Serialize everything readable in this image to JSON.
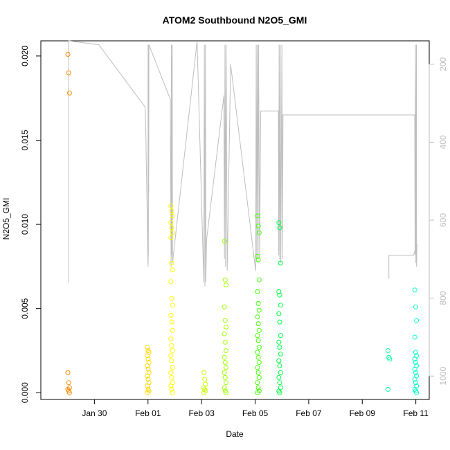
{
  "chart_data": {
    "type": "scatter",
    "title": "ATOM2 Southbound N2O5_GMI",
    "xlabel": "Date",
    "ylabel": "N2O5_GMI",
    "xlim": [
      "2017-01-28T00:00",
      "2017-02-11T12:00"
    ],
    "ylim": [
      -0.0004,
      0.0209
    ],
    "x_ticks": [
      {
        "date": "2017-01-30",
        "label": "Jan 30"
      },
      {
        "date": "2017-02-01",
        "label": "Feb 01"
      },
      {
        "date": "2017-02-03",
        "label": "Feb 03"
      },
      {
        "date": "2017-02-05",
        "label": "Feb 05"
      },
      {
        "date": "2017-02-07",
        "label": "Feb 07"
      },
      {
        "date": "2017-02-09",
        "label": "Feb 09"
      },
      {
        "date": "2017-02-11",
        "label": "Feb 11"
      }
    ],
    "y_ticks": [
      {
        "value": 0.0,
        "label": "0.000"
      },
      {
        "value": 0.005,
        "label": "0.005"
      },
      {
        "value": 0.01,
        "label": "0.010"
      },
      {
        "value": 0.015,
        "label": "0.015"
      },
      {
        "value": 0.02,
        "label": "0.020"
      }
    ],
    "y2_axis": {
      "ylim": [
        1060,
        140
      ],
      "reversed": true,
      "color": "#bebebe",
      "ticks": [
        {
          "value": 200,
          "label": "200"
        },
        {
          "value": 400,
          "label": "400"
        },
        {
          "value": 600,
          "label": "600"
        },
        {
          "value": 800,
          "label": "800"
        },
        {
          "value": 1000,
          "label": "1000"
        }
      ]
    },
    "marker": "open-circle",
    "point_groups": [
      {
        "date": "2017-01-29T00:55",
        "color": "#ff8c00",
        "values": [
          0.0201,
          0.019,
          0.0178,
          0.0012,
          0.0006,
          0.0003,
          0.0002,
          0.0001,
          0.0
        ]
      },
      {
        "date": "2017-02-01T00:10",
        "color": "#ffd700",
        "values": [
          0.0027,
          0.0025,
          0.0024,
          0.0022,
          0.002,
          0.0018,
          0.0016,
          0.0014,
          0.0012,
          0.001,
          0.0008,
          0.0006,
          0.0004,
          0.0002,
          0.0001,
          0.0
        ]
      },
      {
        "date": "2017-02-01T21:15",
        "color": "#ffff00",
        "values": [
          0.0111,
          0.0108,
          0.0105,
          0.0101,
          0.0098,
          0.0095,
          0.0092,
          0.0077,
          0.0073,
          0.0066,
          0.0056,
          0.0052,
          0.0046,
          0.0042,
          0.0037,
          0.0032,
          0.0028,
          0.0025,
          0.0022,
          0.0019,
          0.0015,
          0.0012,
          0.0009,
          0.0006,
          0.0004,
          0.0002,
          0.0
        ]
      },
      {
        "date": "2017-02-03T02:50",
        "color": "#c8ff00",
        "values": [
          0.0012,
          0.0008,
          0.0005,
          0.0003,
          0.0002,
          0.0001,
          0.0
        ]
      },
      {
        "date": "2017-02-03T21:10",
        "color": "#a0ff00",
        "values": [
          0.009,
          0.0067,
          0.0064,
          0.0051,
          0.0043,
          0.0039,
          0.0035,
          0.003,
          0.0025,
          0.0021,
          0.0018,
          0.0015,
          0.0012,
          0.0009,
          0.0006,
          0.0003,
          0.0001,
          0.0
        ]
      },
      {
        "date": "2017-02-05T02:50",
        "color": "#40ff00",
        "values": [
          0.0105,
          0.0099,
          0.0095,
          0.0081,
          0.0079,
          0.0067,
          0.006,
          0.0053,
          0.0049,
          0.0045,
          0.0041,
          0.0037,
          0.0034,
          0.0031,
          0.0027,
          0.0024,
          0.0021,
          0.0018,
          0.0015,
          0.0012,
          0.0009,
          0.0006,
          0.0003,
          0.0001,
          0.0
        ]
      },
      {
        "date": "2017-02-05T22:00",
        "color": "#00ff40",
        "values": [
          0.0101,
          0.0098,
          0.0077,
          0.006,
          0.0058,
          0.0052,
          0.0047,
          0.0042,
          0.0034,
          0.003,
          0.0027,
          0.0023,
          0.0019,
          0.0016,
          0.0012,
          0.0009,
          0.0006,
          0.0003,
          0.0001,
          0.0
        ]
      },
      {
        "date": "2017-02-09T23:50",
        "color": "#00ff9c",
        "values": [
          0.0025,
          0.0021,
          0.002,
          0.0002
        ]
      },
      {
        "date": "2017-02-10T23:50",
        "color": "#00ffc8",
        "values": [
          0.0061,
          0.0051,
          0.0043,
          0.0033,
          0.0024,
          0.0022,
          0.002,
          0.0018,
          0.0016,
          0.0014,
          0.0012,
          0.001,
          0.0008,
          0.0006,
          0.0004,
          0.0002,
          0.0001,
          0.0
        ]
      }
    ],
    "pressure_series": {
      "name": "",
      "color": "#bebebe",
      "points": [
        [
          "2017-01-29T00:55",
          760
        ],
        [
          "2017-01-29T00:55",
          150
        ],
        [
          "2017-01-29T01:00",
          140
        ],
        [
          "2017-01-30T04:00",
          150
        ],
        [
          "2017-01-31T21:30",
          310
        ],
        [
          "2017-01-31T22:00",
          360
        ],
        [
          "2017-02-01T00:00",
          720
        ],
        [
          "2017-02-01T00:05",
          150
        ],
        [
          "2017-02-01T00:10",
          710
        ],
        [
          "2017-02-01T00:15",
          150
        ],
        [
          "2017-02-01T00:20",
          690
        ],
        [
          "2017-02-01T00:30",
          150
        ],
        [
          "2017-02-01T00:40",
          530
        ],
        [
          "2017-02-01T00:50",
          150
        ],
        [
          "2017-02-01T20:00",
          290
        ],
        [
          "2017-02-01T20:40",
          720
        ],
        [
          "2017-02-01T21:00",
          150
        ],
        [
          "2017-02-01T21:20",
          690
        ],
        [
          "2017-02-01T21:40",
          150
        ],
        [
          "2017-02-01T22:00",
          710
        ],
        [
          "2017-02-02T20:00",
          140
        ],
        [
          "2017-02-03T02:00",
          760
        ],
        [
          "2017-02-03T02:30",
          150
        ],
        [
          "2017-02-03T03:00",
          770
        ],
        [
          "2017-02-03T03:30",
          150
        ],
        [
          "2017-02-03T03:50",
          760
        ],
        [
          "2017-02-03T04:30",
          650
        ],
        [
          "2017-02-03T20:00",
          280
        ],
        [
          "2017-02-03T20:30",
          700
        ],
        [
          "2017-02-03T21:00",
          150
        ],
        [
          "2017-02-03T21:30",
          720
        ],
        [
          "2017-02-03T22:00",
          150
        ],
        [
          "2017-02-03T23:00",
          730
        ],
        [
          "2017-02-04T02:00",
          200
        ],
        [
          "2017-02-05T00:30",
          730
        ],
        [
          "2017-02-05T01:00",
          150
        ],
        [
          "2017-02-05T01:30",
          700
        ],
        [
          "2017-02-05T02:00",
          150
        ],
        [
          "2017-02-05T02:40",
          710
        ],
        [
          "2017-02-05T03:00",
          150
        ],
        [
          "2017-02-05T04:00",
          690
        ],
        [
          "2017-02-05T05:00",
          320
        ],
        [
          "2017-02-05T20:50",
          320
        ],
        [
          "2017-02-05T21:10",
          690
        ],
        [
          "2017-02-05T21:30",
          150
        ],
        [
          "2017-02-05T22:00",
          700
        ],
        [
          "2017-02-05T22:30",
          150
        ],
        [
          "2017-02-05T23:00",
          710
        ],
        [
          "2017-02-06T00:00",
          150
        ],
        [
          "2017-02-06T00:30",
          700
        ],
        [
          "2017-02-06T01:00",
          330
        ],
        [
          "2017-02-10T23:00",
          330
        ],
        [
          "2017-02-10T23:20",
          690
        ],
        [
          "2017-02-10T23:40",
          150
        ],
        [
          "2017-02-11T00:00",
          710
        ],
        [
          "2017-02-11T00:30",
          150
        ],
        [
          "2017-02-11T00:40",
          720
        ],
        [
          "2017-02-11T01:00",
          660
        ],
        [
          "2017-02-10T22:00",
          690
        ],
        [
          "2017-02-09T23:50",
          690
        ],
        [
          "2017-02-09T23:50",
          750
        ]
      ]
    }
  }
}
